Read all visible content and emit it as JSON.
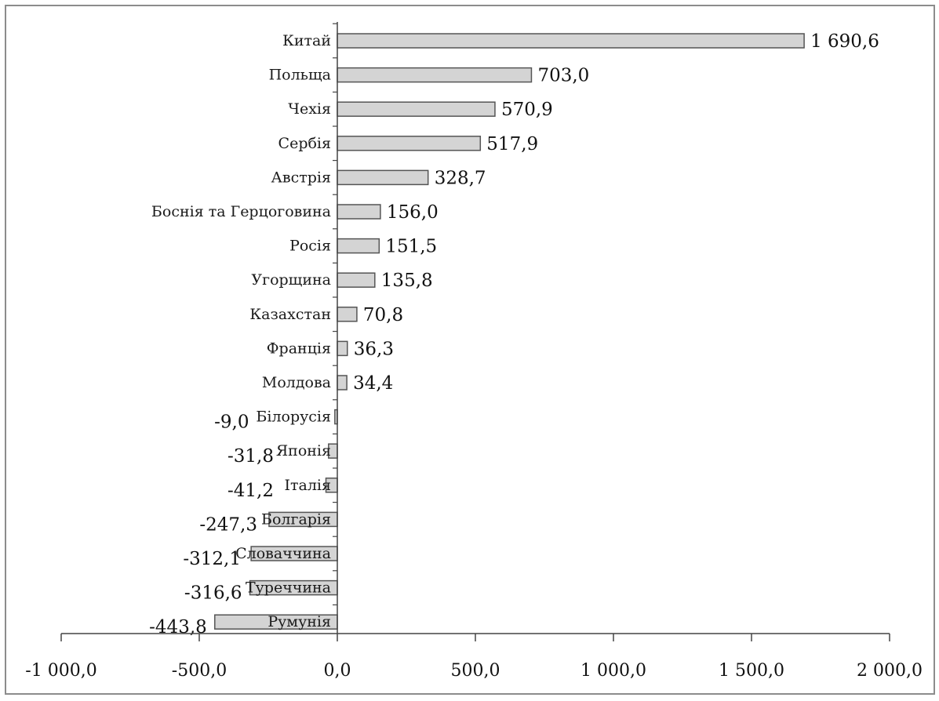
{
  "chart_data": {
    "type": "bar",
    "orientation": "horizontal",
    "categories": [
      "Китай",
      "Польща",
      "Чехія",
      "Сербія",
      "Австрія",
      "Боснія та Герцоговина",
      "Росія",
      "Угорщина",
      "Казахстан",
      "Франція",
      "Молдова",
      "Білорусія",
      "Японія",
      "Італія",
      "Болгарія",
      "Словаччина",
      "Туреччина",
      "Румунія"
    ],
    "values": [
      1690.6,
      703.0,
      570.9,
      517.9,
      328.7,
      156.0,
      151.5,
      135.8,
      70.8,
      36.3,
      34.4,
      -9.0,
      -31.8,
      -41.2,
      -247.3,
      -312.1,
      -316.6,
      -443.8
    ],
    "value_labels": [
      "1 690,6",
      "703,0",
      "570,9",
      "517,9",
      "328,7",
      "156,0",
      "151,5",
      "135,8",
      "70,8",
      "36,3",
      "34,4",
      "-9,0",
      "-31,8",
      "-41,2",
      "-247,3",
      "-312,1",
      "-316,6",
      "-443,8"
    ],
    "xlim": [
      -1000,
      2000
    ],
    "x_ticks": [
      -1000,
      -500,
      0,
      500,
      1000,
      1500,
      2000
    ],
    "x_tick_labels": [
      "-1 000,0",
      "-500,0",
      "0,0",
      "500,0",
      "1 000,0",
      "1 500,0",
      "2 000,0"
    ],
    "title": "",
    "xlabel": "",
    "ylabel": "",
    "grid": false,
    "legend": "none",
    "colors": {
      "bar_fill": "#d4d4d4",
      "bar_stroke": "#555555",
      "axis": "#444444",
      "frame": "#8c8c8c"
    }
  }
}
